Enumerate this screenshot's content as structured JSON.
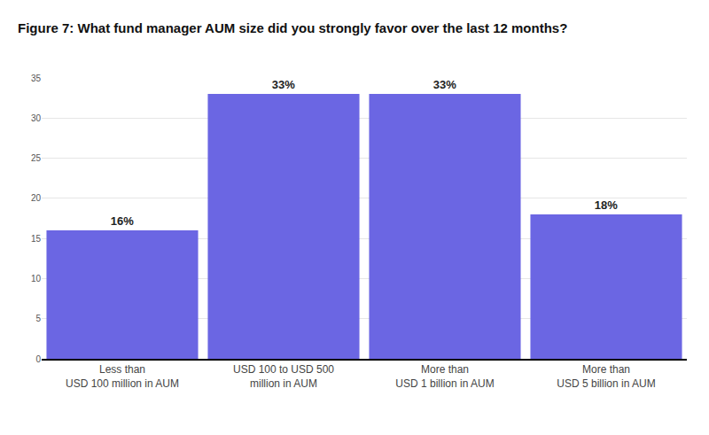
{
  "chart_data": {
    "type": "bar",
    "title": "Figure 7: What fund manager AUM size did you strongly favor over the last 12 months?",
    "categories": [
      "Less than\nUSD 100 million in AUM",
      "USD 100 to USD 500\nmillion in AUM",
      "More than\nUSD 1 billion in AUM",
      "More than\nUSD 5 billion in AUM"
    ],
    "values": [
      16,
      33,
      33,
      18
    ],
    "value_labels": [
      "16%",
      "33%",
      "33%",
      "18%"
    ],
    "color": "#6b66e3",
    "ylim": [
      0,
      35
    ],
    "yticks": [
      0,
      5,
      10,
      15,
      20,
      25,
      30,
      35
    ],
    "grid": true,
    "data_labels": true
  }
}
